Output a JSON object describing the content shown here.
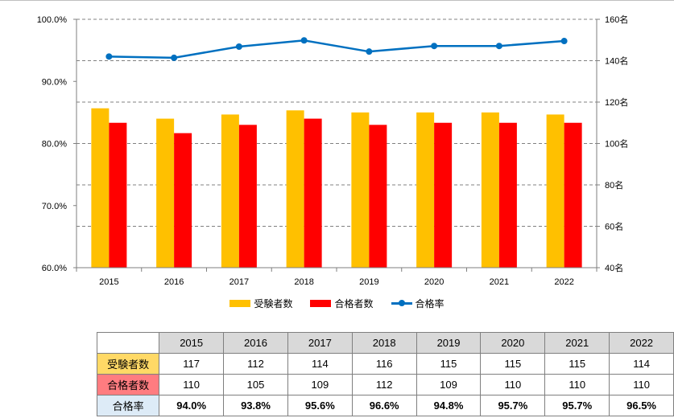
{
  "chart_data": {
    "type": "bar+line",
    "categories": [
      "2015",
      "2016",
      "2017",
      "2018",
      "2019",
      "2020",
      "2021",
      "2022"
    ],
    "series": [
      {
        "name": "受験者数",
        "type": "bar",
        "axis": "right",
        "color": "#ffc000",
        "values": [
          117,
          112,
          114,
          116,
          115,
          115,
          115,
          114
        ]
      },
      {
        "name": "合格者数",
        "type": "bar",
        "axis": "right",
        "color": "#ff0000",
        "values": [
          110,
          105,
          109,
          112,
          109,
          110,
          110,
          110
        ]
      },
      {
        "name": "合格率",
        "type": "line",
        "axis": "left",
        "color": "#0070c0",
        "values": [
          94.0,
          93.8,
          95.6,
          96.6,
          94.8,
          95.7,
          95.7,
          96.5
        ]
      }
    ],
    "y_left": {
      "min": 60,
      "max": 100,
      "ticks": [
        60,
        70,
        80,
        90,
        100
      ],
      "tick_labels": [
        "60.0%",
        "70.0%",
        "80.0%",
        "90.0%",
        "100.0%"
      ]
    },
    "y_right": {
      "min": 40,
      "max": 160,
      "ticks": [
        40,
        60,
        80,
        100,
        120,
        140,
        160
      ],
      "tick_labels": [
        "40名",
        "60名",
        "80名",
        "100名",
        "120名",
        "140名",
        "160名"
      ]
    },
    "grid": "horizontal dashed at right-axis ticks",
    "legend_position": "bottom"
  },
  "table": {
    "headers": [
      "2015",
      "2016",
      "2017",
      "2018",
      "2019",
      "2020",
      "2021",
      "2022"
    ],
    "rows": [
      {
        "label": "受験者数",
        "label_bg": "#ffd966",
        "values": [
          "117",
          "112",
          "114",
          "116",
          "115",
          "115",
          "115",
          "114"
        ]
      },
      {
        "label": "合格者数",
        "label_bg": "#ff7c80",
        "values": [
          "110",
          "105",
          "109",
          "112",
          "109",
          "110",
          "110",
          "110"
        ]
      },
      {
        "label": "合格率",
        "label_bg": "#ddebf7",
        "values": [
          "94.0%",
          "93.8%",
          "95.6%",
          "96.6%",
          "94.8%",
          "95.7%",
          "95.7%",
          "96.5%"
        ]
      }
    ]
  }
}
